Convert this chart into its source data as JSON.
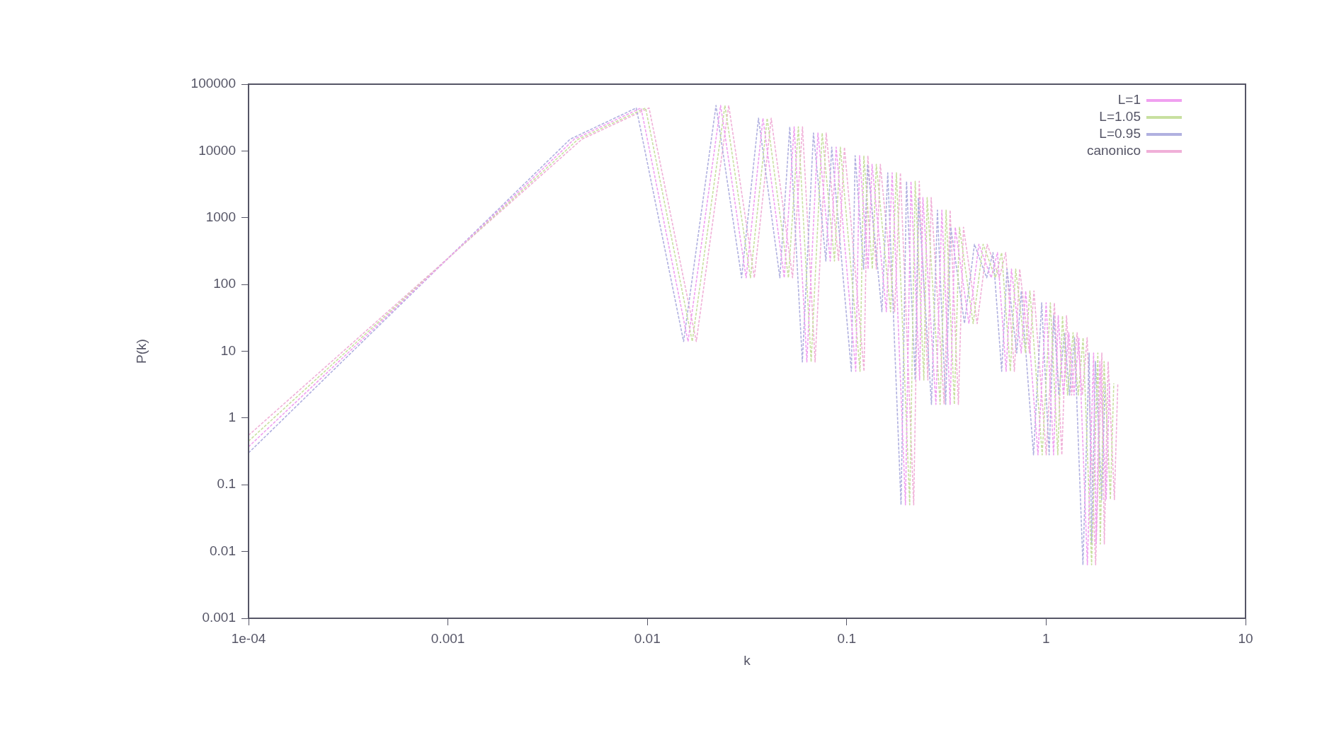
{
  "chart_data": {
    "type": "line",
    "xlabel": "k",
    "ylabel": "P(k)",
    "series": [
      {
        "name": "L=1",
        "color": "#f0a0f0",
        "x": [
          0.0001,
          0.0043,
          0.0093,
          0.016,
          0.0233,
          0.0313,
          0.038,
          0.0486,
          0.0545,
          0.0631,
          0.0717,
          0.0827,
          0.0885,
          0.111,
          0.116,
          0.128,
          0.134,
          0.158,
          0.169,
          0.197,
          0.21,
          0.232,
          0.241,
          0.28,
          0.3,
          0.33,
          0.35,
          0.41,
          0.46,
          0.53,
          0.57,
          0.63,
          0.67,
          0.75,
          0.79,
          0.91,
          1.0,
          1.09,
          1.15,
          1.22,
          1.3,
          1.38,
          1.46,
          1.61,
          1.73,
          1.78,
          1.86,
          2.0,
          2.08
        ],
        "values": [
          0.37,
          15000,
          44000,
          14,
          48000,
          126,
          31000,
          126,
          23000,
          6.9,
          18600,
          224,
          11400,
          5,
          8500,
          170,
          6300,
          39,
          4700,
          0.05,
          3500,
          3.7,
          2000,
          1.6,
          1300,
          1.6,
          720,
          26,
          400,
          126,
          300,
          5,
          170,
          9.4,
          80,
          0.28,
          53,
          0.28,
          34,
          2.2,
          19,
          2.2,
          16,
          0.0063,
          9.4,
          0.013,
          7,
          0.06,
          3.3
        ]
      },
      {
        "name": "L=1.05",
        "color": "#c8e0a0",
        "x": [
          0.0001,
          0.0045,
          0.0098,
          0.0168,
          0.0245,
          0.0329,
          0.0399,
          0.051,
          0.0572,
          0.0663,
          0.0753,
          0.0868,
          0.0929,
          0.1166,
          0.1218,
          0.1344,
          0.1407,
          0.1659,
          0.1775,
          0.2069,
          0.2205,
          0.2436,
          0.2531,
          0.294,
          0.315,
          0.3465,
          0.3675,
          0.4305,
          0.483,
          0.5565,
          0.5985,
          0.6615,
          0.7035,
          0.7875,
          0.8295,
          0.9555,
          1.05,
          1.1445,
          1.2075,
          1.281,
          1.365,
          1.449,
          1.533,
          1.6905,
          1.8165,
          1.869,
          1.953,
          2.1,
          2.184
        ],
        "values": [
          0.45,
          15000,
          44000,
          14,
          48000,
          126,
          31000,
          126,
          23000,
          6.9,
          18600,
          224,
          11400,
          5,
          8500,
          170,
          6300,
          39,
          4700,
          0.05,
          3500,
          3.7,
          2000,
          1.6,
          1300,
          1.6,
          720,
          26,
          400,
          126,
          300,
          5,
          170,
          9.4,
          80,
          0.28,
          53,
          0.28,
          34,
          2.2,
          19,
          2.2,
          16,
          0.0063,
          9.4,
          0.013,
          7,
          0.06,
          3.3
        ]
      },
      {
        "name": "L=0.95",
        "color": "#b0b0e0",
        "x": [
          0.0001,
          0.0041,
          0.0088,
          0.0152,
          0.0221,
          0.0297,
          0.0361,
          0.0462,
          0.0518,
          0.0599,
          0.0681,
          0.0786,
          0.0841,
          0.1055,
          0.1102,
          0.1216,
          0.1273,
          0.1501,
          0.1606,
          0.1872,
          0.1995,
          0.2204,
          0.229,
          0.266,
          0.285,
          0.3135,
          0.3325,
          0.3895,
          0.437,
          0.5035,
          0.5415,
          0.5985,
          0.6365,
          0.7125,
          0.7505,
          0.8645,
          0.95,
          1.0355,
          1.0925,
          1.159,
          1.235,
          1.311,
          1.387,
          1.5295,
          1.6435,
          1.691,
          1.767,
          1.9,
          1.976
        ],
        "values": [
          0.3,
          15000,
          44000,
          14,
          48000,
          126,
          31000,
          126,
          23000,
          6.9,
          18600,
          224,
          11400,
          5,
          8500,
          170,
          6300,
          39,
          4700,
          0.05,
          3500,
          3.7,
          2000,
          1.6,
          1300,
          1.6,
          720,
          26,
          400,
          126,
          300,
          5,
          170,
          9.4,
          80,
          0.28,
          53,
          0.28,
          34,
          2.2,
          19,
          2.2,
          16,
          0.0063,
          9.4,
          0.013,
          7,
          0.06,
          3.3
        ]
      },
      {
        "name": "canonico",
        "color": "#f0b0d8",
        "x": [
          0.0001,
          0.0047,
          0.0102,
          0.0176,
          0.0256,
          0.0344,
          0.0418,
          0.0535,
          0.06,
          0.0694,
          0.0789,
          0.091,
          0.0974,
          0.1221,
          0.1276,
          0.1408,
          0.1474,
          0.1738,
          0.1859,
          0.2167,
          0.231,
          0.2552,
          0.2651,
          0.308,
          0.33,
          0.363,
          0.385,
          0.451,
          0.506,
          0.583,
          0.627,
          0.693,
          0.737,
          0.825,
          0.869,
          1.001,
          1.1,
          1.199,
          1.265,
          1.342,
          1.43,
          1.518,
          1.606,
          1.771,
          1.903,
          1.958,
          2.046,
          2.2,
          2.288
        ],
        "values": [
          0.55,
          15000,
          44000,
          14,
          48000,
          126,
          31000,
          126,
          23000,
          6.9,
          18600,
          224,
          11400,
          5,
          8500,
          170,
          6300,
          39,
          4700,
          0.05,
          3500,
          3.7,
          2000,
          1.6,
          1300,
          1.6,
          720,
          26,
          400,
          126,
          300,
          5,
          170,
          9.4,
          80,
          0.28,
          53,
          0.28,
          34,
          2.2,
          19,
          2.2,
          16,
          0.0063,
          9.4,
          0.013,
          7,
          0.06,
          3.3
        ]
      }
    ],
    "log": "xy",
    "xlim": [
      0.0001,
      10
    ],
    "xticks": [
      {
        "value": 0.0001,
        "label": "1e-04"
      },
      0.001,
      0.01,
      0.1,
      1,
      10
    ],
    "ylim": [
      0.001,
      100000
    ],
    "yticks": [
      0.001,
      0.01,
      0.1,
      1,
      10,
      100,
      1000,
      10000,
      100000
    ],
    "grid": false,
    "legend": "top right",
    "marker": "none",
    "line_style": "dotted"
  }
}
